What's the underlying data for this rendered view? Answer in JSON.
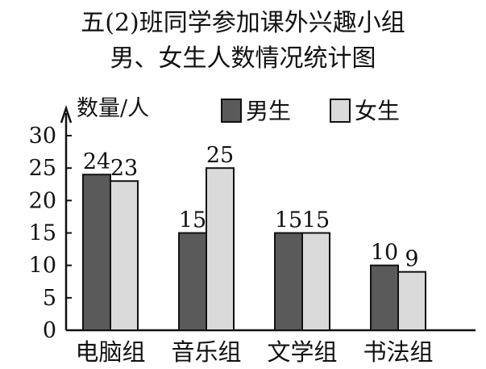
{
  "chart_data": {
    "type": "bar",
    "title_line1": "五(2)班同学参加课外兴趣小组",
    "title_line2": "男、女生人数情况统计图",
    "ylabel": "数量/人",
    "categories": [
      "电脑组",
      "音乐组",
      "文学组",
      "书法组"
    ],
    "series": [
      {
        "name": "男生",
        "values": [
          24,
          15,
          15,
          10
        ],
        "color": "#5a5a5a"
      },
      {
        "name": "女生",
        "values": [
          23,
          25,
          15,
          9
        ],
        "color": "#dadada"
      }
    ],
    "ylim": [
      0,
      30
    ],
    "yticks": [
      0,
      5,
      10,
      15,
      20,
      25,
      30
    ],
    "legend_position": "top-right",
    "grid": false
  }
}
